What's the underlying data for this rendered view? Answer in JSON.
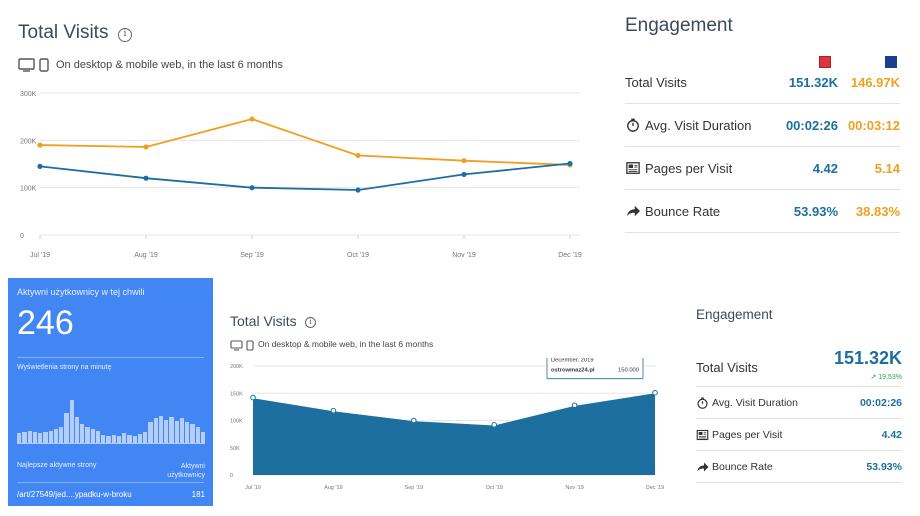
{
  "total_visits_panel": {
    "title": "Total Visits",
    "info": "i",
    "subtitle": "On desktop & mobile web, in the last 6 months",
    "device_icons": [
      "desktop-icon",
      "mobile-icon"
    ]
  },
  "engagement_panel": {
    "title": "Engagement",
    "legend_colors": [
      "#d9363e",
      "#1b3f8f"
    ],
    "rows": [
      {
        "label": "Total Visits",
        "icon": "",
        "value_a": "151.32K",
        "value_b": "146.97K"
      },
      {
        "label": "Avg. Visit Duration",
        "icon": "stopwatch-icon",
        "value_a": "00:02:26",
        "value_b": "00:03:12"
      },
      {
        "label": "Pages per Visit",
        "icon": "pages-icon",
        "value_a": "4.42",
        "value_b": "5.14"
      },
      {
        "label": "Bounce Rate",
        "icon": "bounce-arrow-icon",
        "value_a": "53.93%",
        "value_b": "38.83%"
      }
    ]
  },
  "realtime_card": {
    "title": "Aktywni użytkownicy w tej chwili",
    "active_count": "246",
    "views_per_minute_label": "Wyświetlenia strony na minutę",
    "bar_levels": [
      0.18,
      0.2,
      0.22,
      0.2,
      0.18,
      0.2,
      0.22,
      0.25,
      0.3,
      0.55,
      0.78,
      0.48,
      0.35,
      0.3,
      0.25,
      0.22,
      0.15,
      0.12,
      0.14,
      0.12,
      0.18,
      0.14,
      0.12,
      0.16,
      0.2,
      0.38,
      0.45,
      0.5,
      0.42,
      0.48,
      0.4,
      0.45,
      0.38,
      0.35,
      0.3,
      0.2
    ],
    "top_pages_label": "Najlepsze aktywne strony",
    "active_users_label": "Aktywni użytkownicy",
    "top_page": "/art/27549/jed....ypadku-w-broku",
    "top_page_count": "181"
  },
  "total_visits_panel_2": {
    "title": "Total Visits",
    "info": "i",
    "subtitle": "On desktop & mobile web, in the last 6 months",
    "tooltip": {
      "date": "December, 2019",
      "site": "ostrowmaz24.pl",
      "value": "150.000"
    }
  },
  "engagement_panel_2": {
    "title": "Engagement",
    "total_visits_label": "Total Visits",
    "total_visits_value": "151.32K",
    "total_visits_change": "↗ 19.53%",
    "rows": [
      {
        "label": "Avg. Visit Duration",
        "icon": "stopwatch-icon",
        "value": "00:02:26"
      },
      {
        "label": "Pages per Visit",
        "icon": "pages-icon",
        "value": "4.42"
      },
      {
        "label": "Bounce Rate",
        "icon": "bounce-arrow-icon",
        "value": "53.93%"
      }
    ]
  },
  "chart_data": [
    {
      "type": "line",
      "categories": [
        "Jul '19",
        "Aug '19",
        "Sep '19",
        "Oct '19",
        "Nov '19",
        "Dec '19"
      ],
      "y_ticks": [
        "0",
        "100K",
        "200K",
        "300K"
      ],
      "ylim": [
        0,
        300000
      ],
      "grid": true,
      "series": [
        {
          "color": "#f0a020",
          "values": [
            190000,
            186000,
            245000,
            168000,
            157000,
            148000
          ]
        },
        {
          "color": "#1d6fa0",
          "values": [
            145000,
            120000,
            100000,
            95000,
            128000,
            151000
          ]
        }
      ]
    },
    {
      "type": "area",
      "categories": [
        "Jul '19",
        "Aug '19",
        "Sep '19",
        "Oct '19",
        "Nov '19",
        "Dec '19"
      ],
      "y_ticks": [
        "0",
        "50K",
        "100K",
        "150K",
        "200K"
      ],
      "ylim": [
        0,
        200000
      ],
      "grid": true,
      "series": [
        {
          "color": "#1d6fa0",
          "values": [
            142000,
            118000,
            100000,
            92000,
            128000,
            151000
          ]
        }
      ]
    }
  ]
}
